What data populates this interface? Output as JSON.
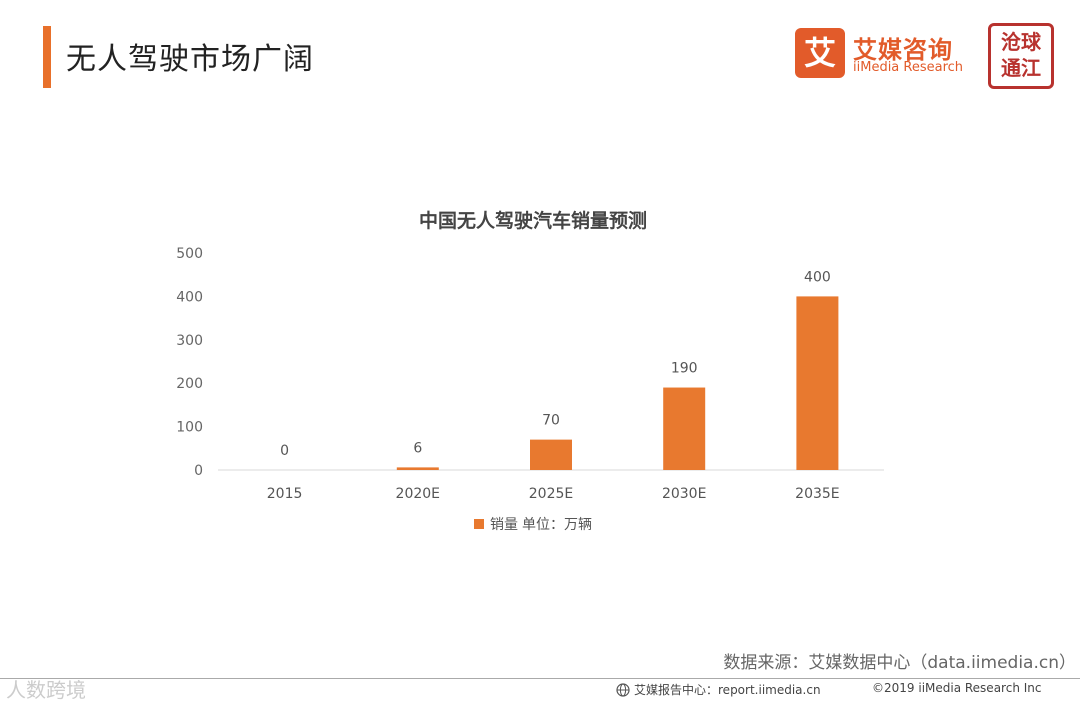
{
  "header": {
    "title": "无人驾驶市场广阔",
    "accent_color": "#E8702A"
  },
  "logo": {
    "mark": "艾",
    "name_cn": "艾媒咨询",
    "name_en": "iiMedia Research",
    "brand_color": "#E25B2A"
  },
  "seal": {
    "text_line1": "沧球",
    "text_line2": "通江"
  },
  "chart_data": {
    "type": "bar",
    "title": "中国无人驾驶汽车销量预测",
    "categories": [
      "2015",
      "2020E",
      "2025E",
      "2030E",
      "2035E"
    ],
    "series": [
      {
        "name": "销量 单位：万辆",
        "values": [
          0,
          6,
          70,
          190,
          400
        ],
        "color": "#E8792F"
      }
    ],
    "yticks": [
      0,
      100,
      200,
      300,
      400,
      500
    ],
    "ylim": [
      0,
      500
    ],
    "grid": false,
    "legend": "bottom"
  },
  "legend": {
    "label": "销量",
    "unit": "单位：万辆"
  },
  "source": "数据来源：艾媒数据中心（data.iimedia.cn）",
  "footer": {
    "watermark": "人数跨境",
    "report_label": "艾媒报告中心：",
    "report_url": "report.iimedia.cn",
    "copyright": "©2019  iiMedia Research Inc"
  }
}
